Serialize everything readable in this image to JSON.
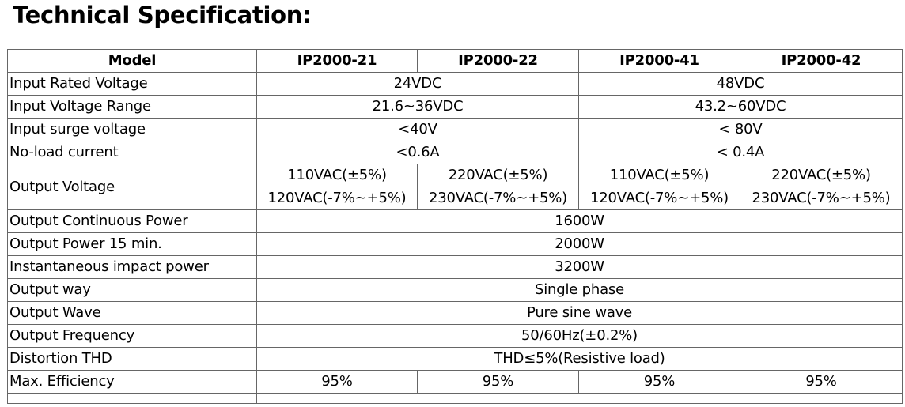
{
  "title": "Technical Specification:",
  "table": {
    "header": {
      "label": "Model",
      "models": [
        "IP2000-21",
        "IP2000-22",
        "IP2000-41",
        "IP2000-42"
      ]
    },
    "input_rated_voltage": {
      "label": "Input Rated Voltage",
      "v24": "24VDC",
      "v48": "48VDC"
    },
    "input_voltage_range": {
      "label": "Input Voltage Range",
      "v24": "21.6~36VDC",
      "v48": "43.2~60VDC"
    },
    "input_surge_voltage": {
      "label": "Input surge voltage",
      "v24": "<40V",
      "v48": "< 80V"
    },
    "no_load_current": {
      "label": "No-load current",
      "v24": "<0.6A",
      "v48": "< 0.4A"
    },
    "output_voltage": {
      "label": "Output Voltage",
      "row1": [
        "110VAC(±5%)",
        "220VAC(±5%)",
        "110VAC(±5%)",
        "220VAC(±5%)"
      ],
      "row2": [
        "120VAC(-7%~+5%)",
        "230VAC(-7%~+5%)",
        "120VAC(-7%~+5%)",
        "230VAC(-7%~+5%)"
      ]
    },
    "output_continuous_power": {
      "label": "Output Continuous Power",
      "value": "1600W"
    },
    "output_power_15": {
      "label": "Output Power 15 min.",
      "value": "2000W"
    },
    "instantaneous_impact_power": {
      "label": "Instantaneous impact power",
      "value": "3200W"
    },
    "output_way": {
      "label": "Output way",
      "value": "Single phase"
    },
    "output_wave": {
      "label": "Output Wave",
      "value": "Pure sine wave"
    },
    "output_frequency": {
      "label": "Output Frequency",
      "value": "50/60Hz(±0.2%)"
    },
    "distortion_thd": {
      "label": "Distortion THD",
      "value": "THD≤5%(Resistive load)"
    },
    "max_efficiency": {
      "label": "Max. Efficiency",
      "values": [
        "95%",
        "95%",
        "95%",
        "95%"
      ]
    }
  }
}
